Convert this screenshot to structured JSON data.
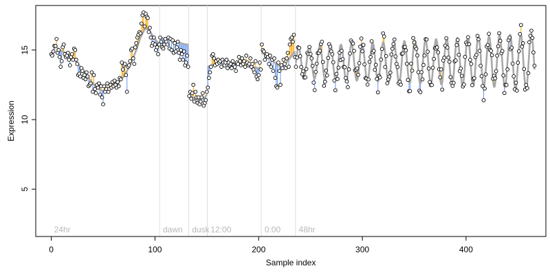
{
  "chart_data": {
    "type": "scatter",
    "xlabel": "Sample index",
    "ylabel": "Expression",
    "xlim": [
      -15,
      477
    ],
    "ylim": [
      1.6,
      18.2
    ],
    "x_ticks": [
      0,
      100,
      200,
      300,
      400
    ],
    "y_ticks": [
      5,
      10,
      15
    ],
    "grid": false,
    "colors": {
      "fitted_line": "#a8a8a8",
      "residual_above": "#ffa500",
      "residual_below": "#6495ed",
      "point_fill": "#ffffff",
      "point_stroke": "#000000",
      "phase_divider": "#dedede",
      "phase_label": "#b8b8b8"
    },
    "phases": [
      {
        "label": "24hr",
        "x": 0
      },
      {
        "label": "dawn",
        "x": 105
      },
      {
        "label": "dusk",
        "x": 133
      },
      {
        "label": "12:00",
        "x": 151
      },
      {
        "label": "0:00",
        "x": 203
      },
      {
        "label": "48hr",
        "x": 236
      }
    ],
    "dividers": [
      105,
      133,
      151,
      203,
      236
    ],
    "fitted_segments": [
      {
        "x": [
          0,
          4,
          8,
          14,
          20,
          26,
          32,
          36,
          40,
          44,
          48,
          52,
          58,
          64,
          70,
          76,
          82,
          86,
          90,
          94,
          98,
          104
        ],
        "y": [
          14.6,
          15.3,
          15.0,
          14.8,
          14.5,
          14.0,
          13.4,
          13.0,
          12.6,
          12.3,
          12.1,
          12.1,
          12.3,
          12.6,
          13.1,
          13.9,
          15.0,
          15.9,
          16.5,
          16.5,
          16.0,
          15.4
        ]
      },
      {
        "x": [
          105,
          110,
          115,
          120,
          125,
          130,
          132
        ],
        "y": [
          15.9,
          15.8,
          15.7,
          15.6,
          15.5,
          15.4,
          15.4
        ]
      },
      {
        "x": [
          133,
          136,
          139,
          142,
          145,
          148,
          150
        ],
        "y": [
          11.7,
          11.6,
          11.5,
          11.4,
          11.5,
          11.6,
          11.8
        ]
      },
      {
        "x": [
          151,
          158,
          165,
          172,
          179,
          186,
          193,
          200,
          202
        ],
        "y": [
          13.8,
          14.0,
          14.1,
          14.1,
          14.0,
          13.9,
          13.8,
          13.7,
          13.7
        ]
      },
      {
        "x": [
          203,
          208,
          213,
          218,
          223,
          228,
          235
        ],
        "y": [
          14.8,
          14.6,
          14.3,
          13.9,
          13.8,
          14.2,
          14.9
        ]
      }
    ],
    "oscillation": {
      "x_start": 236,
      "x_end": 466,
      "period": 10.2,
      "phase_offset": 0,
      "amp_start": 1.1,
      "amp_end": 2.0,
      "mean_start": 14.1,
      "mean_end": 14.2
    },
    "points": [
      [
        0,
        14.7
      ],
      [
        1,
        14.6
      ],
      [
        2,
        14.9
      ],
      [
        3,
        15.3
      ],
      [
        4,
        15.3
      ],
      [
        5,
        15.8
      ],
      [
        6,
        14.8
      ],
      [
        7,
        15.0
      ],
      [
        8,
        14.5
      ],
      [
        9,
        13.8
      ],
      [
        10,
        14.2
      ],
      [
        11,
        15.2
      ],
      [
        12,
        15.4
      ],
      [
        13,
        14.7
      ],
      [
        14,
        14.5
      ],
      [
        15,
        14.6
      ],
      [
        16,
        14.8
      ],
      [
        17,
        14.3
      ],
      [
        18,
        13.9
      ],
      [
        19,
        14.5
      ],
      [
        20,
        14.7
      ],
      [
        21,
        14.3
      ],
      [
        22,
        15.1
      ],
      [
        23,
        15.0
      ],
      [
        24,
        14.3
      ],
      [
        25,
        14.0
      ],
      [
        26,
        13.2
      ],
      [
        27,
        13.3
      ],
      [
        28,
        13.1
      ],
      [
        29,
        13.7
      ],
      [
        30,
        13.5
      ],
      [
        31,
        13.0
      ],
      [
        32,
        13.2
      ],
      [
        33,
        12.9
      ],
      [
        34,
        13.4
      ],
      [
        35,
        13.1
      ],
      [
        36,
        12.4
      ],
      [
        37,
        12.5
      ],
      [
        38,
        12.6
      ],
      [
        39,
        13.4
      ],
      [
        40,
        12.0
      ],
      [
        41,
        13.2
      ],
      [
        42,
        12.2
      ],
      [
        43,
        11.9
      ],
      [
        44,
        12.5
      ],
      [
        45,
        12.3
      ],
      [
        46,
        12.6
      ],
      [
        47,
        11.8
      ],
      [
        48,
        12.4
      ],
      [
        49,
        11.6
      ],
      [
        50,
        11.1
      ],
      [
        51,
        12.4
      ],
      [
        52,
        12.0
      ],
      [
        53,
        12.2
      ],
      [
        54,
        12.6
      ],
      [
        55,
        12.0
      ],
      [
        56,
        12.2
      ],
      [
        57,
        12.5
      ],
      [
        58,
        12.3
      ],
      [
        59,
        12.7
      ],
      [
        60,
        12.4
      ],
      [
        61,
        12.8
      ],
      [
        62,
        12.5
      ],
      [
        63,
        12.3
      ],
      [
        64,
        12.7
      ],
      [
        65,
        12.4
      ],
      [
        66,
        13.0
      ],
      [
        67,
        12.9
      ],
      [
        68,
        14.1
      ],
      [
        69,
        13.6
      ],
      [
        70,
        13.9
      ],
      [
        71,
        14.0
      ],
      [
        72,
        13.2
      ],
      [
        73,
        12.0
      ],
      [
        74,
        13.8
      ],
      [
        75,
        13.9
      ],
      [
        76,
        14.2
      ],
      [
        77,
        15.0
      ],
      [
        78,
        15.1
      ],
      [
        79,
        14.4
      ],
      [
        80,
        14.0
      ],
      [
        81,
        15.2
      ],
      [
        82,
        15.5
      ],
      [
        83,
        15.9
      ],
      [
        84,
        16.1
      ],
      [
        85,
        16.3
      ],
      [
        86,
        16.2
      ],
      [
        87,
        16.9
      ],
      [
        88,
        17.5
      ],
      [
        89,
        17.7
      ],
      [
        90,
        16.7
      ],
      [
        91,
        17.6
      ],
      [
        92,
        17.4
      ],
      [
        93,
        17.3
      ],
      [
        94,
        16.3
      ],
      [
        95,
        16.6
      ],
      [
        96,
        15.9
      ],
      [
        97,
        15.3
      ],
      [
        98,
        15.5
      ],
      [
        99,
        15.9
      ],
      [
        100,
        15.4
      ],
      [
        101,
        15.0
      ],
      [
        102,
        15.2
      ],
      [
        103,
        14.7
      ],
      [
        104,
        15.4
      ],
      [
        105,
        15.9
      ],
      [
        106,
        15.6
      ],
      [
        107,
        15.2
      ],
      [
        108,
        15.1
      ],
      [
        109,
        15.4
      ],
      [
        110,
        15.8
      ],
      [
        111,
        15.6
      ],
      [
        112,
        15.4
      ],
      [
        113,
        15.9
      ],
      [
        114,
        15.1
      ],
      [
        115,
        15.8
      ],
      [
        116,
        15.0
      ],
      [
        117,
        15.7
      ],
      [
        118,
        14.8
      ],
      [
        119,
        15.5
      ],
      [
        120,
        14.9
      ],
      [
        121,
        15.2
      ],
      [
        122,
        15.6
      ],
      [
        123,
        14.8
      ],
      [
        124,
        14.3
      ],
      [
        125,
        15.0
      ],
      [
        126,
        14.7
      ],
      [
        127,
        14.3
      ],
      [
        128,
        14.9
      ],
      [
        129,
        13.9
      ],
      [
        130,
        14.1
      ],
      [
        131,
        14.6
      ],
      [
        132,
        13.8
      ],
      [
        133,
        11.7
      ],
      [
        134,
        12.0
      ],
      [
        135,
        11.5
      ],
      [
        136,
        11.9
      ],
      [
        137,
        12.5
      ],
      [
        138,
        11.3
      ],
      [
        139,
        12.0
      ],
      [
        140,
        11.6
      ],
      [
        141,
        11.2
      ],
      [
        142,
        11.6
      ],
      [
        143,
        11.1
      ],
      [
        144,
        11.3
      ],
      [
        145,
        11.6
      ],
      [
        146,
        11.9
      ],
      [
        147,
        11.0
      ],
      [
        148,
        11.2
      ],
      [
        149,
        11.4
      ],
      [
        150,
        12.0
      ],
      [
        151,
        12.3
      ],
      [
        152,
        13.0
      ],
      [
        153,
        13.4
      ],
      [
        154,
        13.8
      ],
      [
        155,
        14.6
      ],
      [
        156,
        14.7
      ],
      [
        157,
        14.4
      ],
      [
        158,
        13.9
      ],
      [
        159,
        14.2
      ],
      [
        160,
        14.0
      ],
      [
        161,
        14.3
      ],
      [
        162,
        14.1
      ],
      [
        163,
        14.2
      ],
      [
        164,
        13.8
      ],
      [
        165,
        14.3
      ],
      [
        166,
        14.1
      ],
      [
        167,
        13.9
      ],
      [
        168,
        14.1
      ],
      [
        169,
        14.3
      ],
      [
        170,
        13.7
      ],
      [
        171,
        14.1
      ],
      [
        172,
        13.9
      ],
      [
        173,
        14.0
      ],
      [
        174,
        13.7
      ],
      [
        175,
        14.2
      ],
      [
        176,
        13.9
      ],
      [
        177,
        13.8
      ],
      [
        178,
        13.5
      ],
      [
        179,
        14.1
      ],
      [
        180,
        14.0
      ],
      [
        181,
        14.5
      ],
      [
        182,
        14.2
      ],
      [
        183,
        13.9
      ],
      [
        184,
        14.4
      ],
      [
        185,
        14.0
      ],
      [
        186,
        14.2
      ],
      [
        187,
        13.8
      ],
      [
        188,
        14.6
      ],
      [
        189,
        14.1
      ],
      [
        190,
        13.9
      ],
      [
        191,
        14.0
      ],
      [
        192,
        14.4
      ],
      [
        193,
        13.8
      ],
      [
        194,
        14.0
      ],
      [
        195,
        13.6
      ],
      [
        196,
        13.4
      ],
      [
        197,
        14.2
      ],
      [
        198,
        13.1
      ],
      [
        199,
        12.9
      ],
      [
        200,
        13.2
      ],
      [
        201,
        14.1
      ],
      [
        202,
        13.6
      ],
      [
        203,
        15.4
      ],
      [
        204,
        15.0
      ],
      [
        205,
        14.9
      ],
      [
        206,
        14.3
      ],
      [
        207,
        14.6
      ],
      [
        208,
        14.7
      ],
      [
        209,
        14.5
      ],
      [
        210,
        14.0
      ],
      [
        211,
        14.6
      ],
      [
        212,
        13.8
      ],
      [
        213,
        14.3
      ],
      [
        214,
        13.5
      ],
      [
        215,
        14.4
      ],
      [
        216,
        13.0
      ],
      [
        217,
        12.4
      ],
      [
        218,
        12.3
      ],
      [
        219,
        14.1
      ],
      [
        220,
        13.5
      ],
      [
        221,
        12.5
      ],
      [
        222,
        13.9
      ],
      [
        223,
        13.7
      ],
      [
        224,
        14.3
      ],
      [
        225,
        14.0
      ],
      [
        226,
        13.7
      ],
      [
        227,
        14.4
      ],
      [
        228,
        14.8
      ],
      [
        229,
        13.8
      ],
      [
        230,
        15.4
      ],
      [
        231,
        15.8
      ],
      [
        232,
        15.9
      ],
      [
        233,
        15.6
      ],
      [
        234,
        16.1
      ],
      [
        235,
        14.5
      ]
    ]
  }
}
